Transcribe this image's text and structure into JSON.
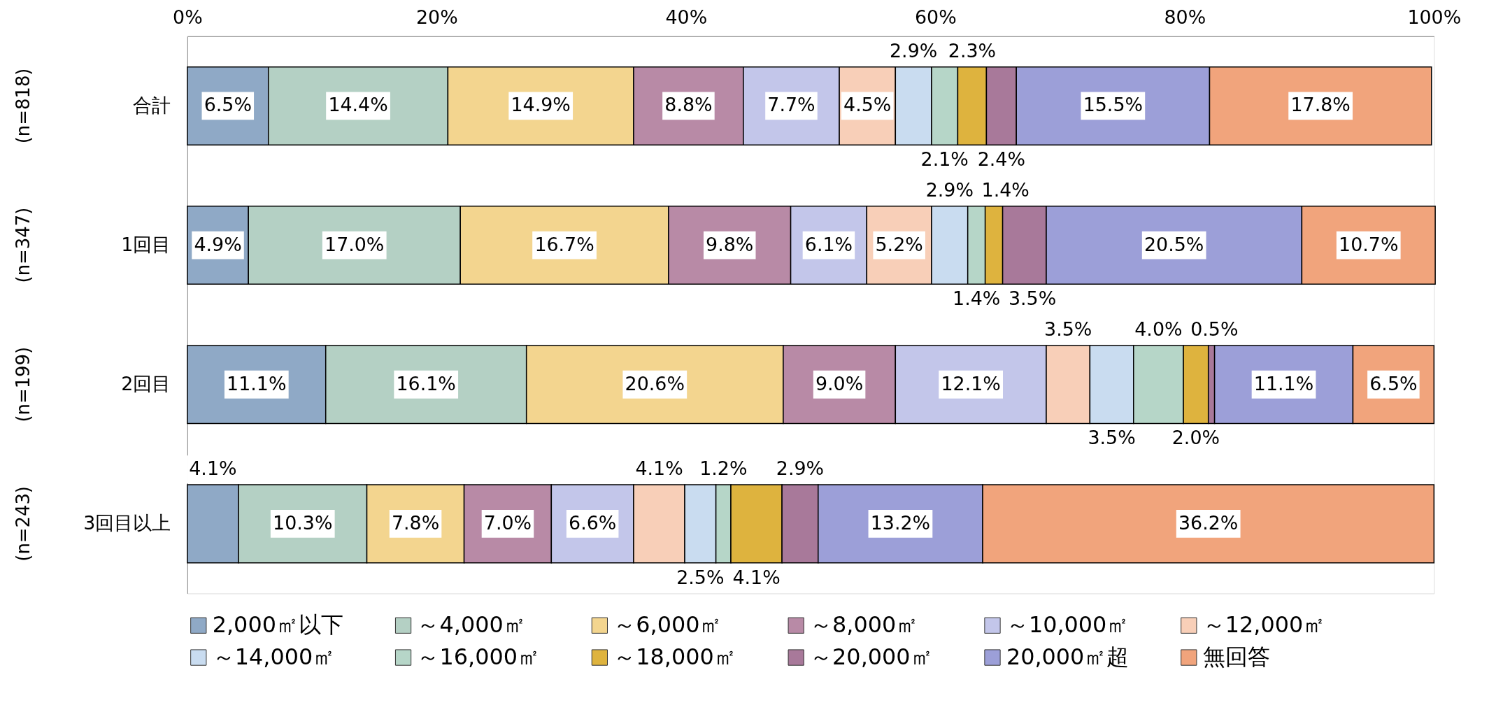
{
  "chart_data": {
    "type": "bar",
    "orientation": "horizontal",
    "stacked": true,
    "legend": "bottom",
    "categories": [
      "合計",
      "1回目",
      "2回目",
      "3回目以上"
    ],
    "annotations": [
      "(n=818)",
      "(n=347)",
      "(n=199)",
      "(n=243)"
    ],
    "xlim": [
      0,
      100
    ],
    "xticks": [
      {
        "value": 0,
        "label": "0%"
      },
      {
        "value": 20,
        "label": "20%"
      },
      {
        "value": 40,
        "label": "40%"
      },
      {
        "value": 60,
        "label": "60%"
      },
      {
        "value": 80,
        "label": "80%"
      },
      {
        "value": 100,
        "label": "100%"
      }
    ],
    "series": [
      {
        "name": "2,000㎡以下",
        "color": "#8fa9c6",
        "values": [
          6.5,
          4.9,
          11.1,
          4.1
        ],
        "value_labels": [
          "6.5%",
          "4.9%",
          "11.1%",
          "4.1%"
        ]
      },
      {
        "name": "～4,000㎡",
        "color": "#b4d0c4",
        "values": [
          14.4,
          17.0,
          16.1,
          10.3
        ],
        "value_labels": [
          "14.4%",
          "17.0%",
          "16.1%",
          "10.3%"
        ]
      },
      {
        "name": "～6,000㎡",
        "color": "#f3d58f",
        "values": [
          14.9,
          16.7,
          20.6,
          7.8
        ],
        "value_labels": [
          "14.9%",
          "16.7%",
          "20.6%",
          "7.8%"
        ]
      },
      {
        "name": "～8,000㎡",
        "color": "#b88aa6",
        "values": [
          8.8,
          9.8,
          9.0,
          7.0
        ],
        "value_labels": [
          "8.8%",
          "9.8%",
          "9.0%",
          "7.0%"
        ]
      },
      {
        "name": "～10,000㎡",
        "color": "#c3c6ea",
        "values": [
          7.7,
          6.1,
          12.1,
          6.6
        ],
        "value_labels": [
          "7.7%",
          "6.1%",
          "12.1%",
          "6.6%"
        ]
      },
      {
        "name": "～12,000㎡",
        "color": "#f8cfb8",
        "values": [
          4.5,
          5.2,
          3.5,
          4.1
        ],
        "value_labels": [
          "4.5%",
          "5.2%",
          "3.5%",
          "4.1%"
        ]
      },
      {
        "name": "～14,000㎡",
        "color": "#c9dcf0",
        "values": [
          2.9,
          2.9,
          3.5,
          2.5
        ],
        "value_labels": [
          "2.9%",
          "2.9%",
          "3.5%",
          "2.5%"
        ]
      },
      {
        "name": "～16,000㎡",
        "color": "#b6d6c8",
        "values": [
          2.1,
          1.4,
          4.0,
          1.2
        ],
        "value_labels": [
          "2.1%",
          "1.4%",
          "4.0%",
          "1.2%"
        ]
      },
      {
        "name": "～18,000㎡",
        "color": "#deb33e",
        "values": [
          2.3,
          1.4,
          2.0,
          4.1
        ],
        "value_labels": [
          "2.3%",
          "1.4%",
          "2.0%",
          "4.1%"
        ]
      },
      {
        "name": "～20,000㎡",
        "color": "#a8799a",
        "values": [
          2.4,
          3.5,
          0.5,
          2.9
        ],
        "value_labels": [
          "2.4%",
          "3.5%",
          "0.5%",
          "2.9%"
        ]
      },
      {
        "name": "20,000㎡超",
        "color": "#9c9fd8",
        "values": [
          15.5,
          20.5,
          11.1,
          13.2
        ],
        "value_labels": [
          "15.5%",
          "20.5%",
          "11.1%",
          "13.2%"
        ]
      },
      {
        "name": "無回答",
        "color": "#f1a47c",
        "values": [
          17.8,
          10.7,
          6.5,
          36.2
        ],
        "value_labels": [
          "17.8%",
          "10.7%",
          "6.5%",
          "36.2%"
        ]
      }
    ]
  }
}
